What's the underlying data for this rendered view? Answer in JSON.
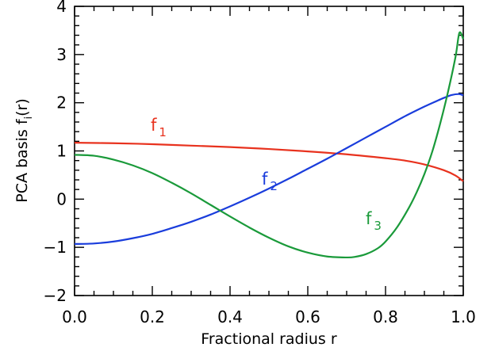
{
  "chart_data": {
    "type": "line",
    "xlabel": "Fractional radius r",
    "ylabel": {
      "main": "PCA basis f",
      "sub": "i",
      "tail": "(r)"
    },
    "xlim": [
      0,
      1
    ],
    "ylim": [
      -2,
      4
    ],
    "x_ticks": [
      "0.0",
      "0.2",
      "0.4",
      "0.6",
      "0.8",
      "1.0"
    ],
    "y_ticks": [
      "−2",
      "−1",
      "0",
      "1",
      "2",
      "3",
      "4"
    ],
    "grid": false,
    "legend": "none",
    "series": [
      {
        "name": "f1",
        "label_main": "f",
        "label_sub": "1",
        "color": "#e8321e",
        "x": [
          0,
          0.1,
          0.2,
          0.3,
          0.4,
          0.5,
          0.6,
          0.7,
          0.8,
          0.85,
          0.9,
          0.95,
          0.98,
          1.0
        ],
        "y": [
          1.17,
          1.16,
          1.14,
          1.11,
          1.08,
          1.04,
          0.99,
          0.93,
          0.85,
          0.8,
          0.72,
          0.6,
          0.49,
          0.37
        ]
      },
      {
        "name": "f2",
        "label_main": "f",
        "label_sub": "2",
        "color": "#1a3ddc",
        "x": [
          0,
          0.05,
          0.1,
          0.15,
          0.2,
          0.25,
          0.3,
          0.35,
          0.4,
          0.45,
          0.5,
          0.55,
          0.6,
          0.65,
          0.7,
          0.75,
          0.8,
          0.85,
          0.9,
          0.93,
          0.95,
          0.97,
          0.99,
          1.0
        ],
        "y": [
          -0.93,
          -0.92,
          -0.88,
          -0.81,
          -0.72,
          -0.6,
          -0.47,
          -0.32,
          -0.15,
          0.03,
          0.22,
          0.42,
          0.63,
          0.84,
          1.06,
          1.28,
          1.5,
          1.72,
          1.92,
          2.03,
          2.1,
          2.16,
          2.18,
          2.15
        ]
      },
      {
        "name": "f3",
        "label_main": "f",
        "label_sub": "3",
        "color": "#1a9a3a",
        "x": [
          0,
          0.05,
          0.1,
          0.15,
          0.2,
          0.25,
          0.3,
          0.35,
          0.4,
          0.45,
          0.5,
          0.55,
          0.6,
          0.65,
          0.7,
          0.72,
          0.75,
          0.78,
          0.8,
          0.83,
          0.86,
          0.88,
          0.9,
          0.92,
          0.94,
          0.96,
          0.98,
          0.99,
          1.0
        ],
        "y": [
          0.92,
          0.9,
          0.82,
          0.7,
          0.54,
          0.34,
          0.12,
          -0.12,
          -0.36,
          -0.59,
          -0.8,
          -0.98,
          -1.11,
          -1.19,
          -1.21,
          -1.2,
          -1.14,
          -1.02,
          -0.88,
          -0.58,
          -0.18,
          0.14,
          0.52,
          0.98,
          1.55,
          2.2,
          2.95,
          3.45,
          3.32
        ]
      }
    ]
  }
}
